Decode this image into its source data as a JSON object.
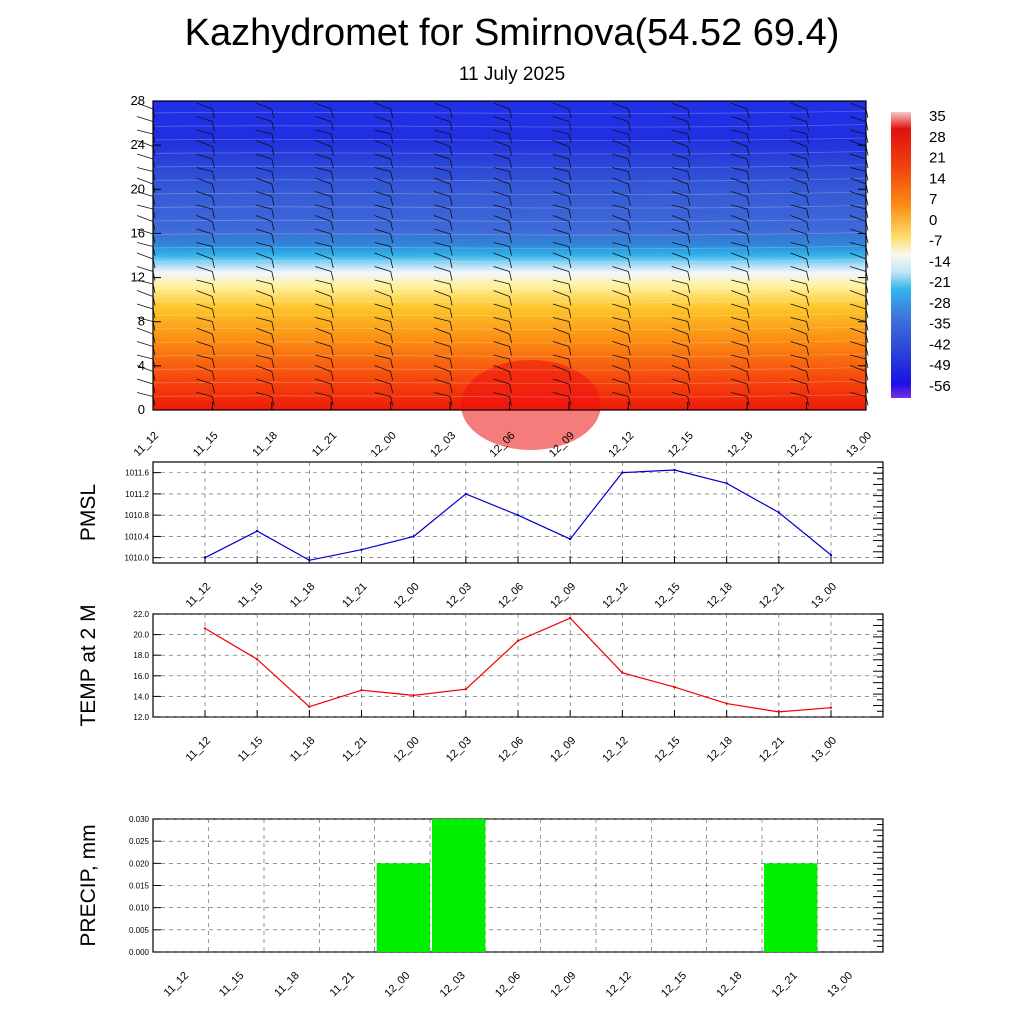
{
  "title": "Kazhydromet for Smirnova(54.52 69.4)",
  "subtitle": "11 July 2025",
  "time_labels": [
    "11_12",
    "11_15",
    "11_18",
    "11_21",
    "12_00",
    "12_03",
    "12_06",
    "12_09",
    "12_12",
    "12_15",
    "12_18",
    "12_21",
    "13_00"
  ],
  "chart_data": [
    {
      "type": "heatmap",
      "name": "temperature-cross-section",
      "x": [
        "11_12",
        "11_15",
        "11_18",
        "11_21",
        "12_00",
        "12_03",
        "12_06",
        "12_09",
        "12_12",
        "12_15",
        "12_18",
        "12_21",
        "13_00"
      ],
      "yticks": [
        0,
        4,
        8,
        12,
        16,
        20,
        24,
        28
      ],
      "ylim": [
        0,
        28
      ],
      "colorbar": {
        "labels": [
          35,
          28,
          21,
          14,
          7,
          0,
          -7,
          -14,
          -21,
          -28,
          -35,
          -42,
          -49,
          -56
        ],
        "range": [
          -60,
          38
        ]
      },
      "wind_barbs": true,
      "grid": false
    },
    {
      "type": "line",
      "name": "pmsl",
      "ylabel": "PMSL",
      "x": [
        "11_12",
        "11_15",
        "11_18",
        "11_21",
        "12_00",
        "12_03",
        "12_06",
        "12_09",
        "12_12",
        "12_15",
        "12_18",
        "12_21",
        "13_00"
      ],
      "values": [
        1010.0,
        1010.5,
        1009.95,
        1010.15,
        1010.4,
        1011.2,
        1010.8,
        1010.35,
        1011.6,
        1011.65,
        1011.4,
        1010.85,
        1010.05
      ],
      "yticks": [
        "1010.0",
        "1010.4",
        "1010.8",
        "1011.2",
        "1011.6"
      ],
      "ylim": [
        1009.9,
        1011.8
      ],
      "color": "#0000cc",
      "grid": true
    },
    {
      "type": "line",
      "name": "temp-2m",
      "ylabel": "TEMP at 2 M",
      "x": [
        "11_12",
        "11_15",
        "11_18",
        "11_21",
        "12_00",
        "12_03",
        "12_06",
        "12_09",
        "12_12",
        "12_15",
        "12_18",
        "12_21",
        "13_00"
      ],
      "values": [
        20.6,
        17.6,
        13.0,
        14.6,
        14.1,
        14.7,
        19.4,
        21.6,
        16.3,
        14.9,
        13.3,
        12.5,
        12.9
      ],
      "yticks": [
        "12.0",
        "14.0",
        "16.0",
        "18.0",
        "20.0",
        "22.0"
      ],
      "ylim": [
        12.0,
        22.0
      ],
      "color": "#ee0000",
      "grid": true
    },
    {
      "type": "bar",
      "name": "precip",
      "ylabel": "PRECIP, mm",
      "categories": [
        "11_12",
        "11_15",
        "11_18",
        "11_21",
        "12_00",
        "12_03",
        "12_06",
        "12_09",
        "12_12",
        "12_15",
        "12_18",
        "12_21",
        "13_00"
      ],
      "values": [
        0,
        0,
        0,
        0,
        0.02,
        0.03,
        0,
        0,
        0,
        0,
        0,
        0.02,
        0
      ],
      "yticks": [
        "0.000",
        "0.005",
        "0.010",
        "0.015",
        "0.020",
        "0.025",
        "0.030"
      ],
      "ylim": [
        0,
        0.03
      ],
      "color": "#00ee00",
      "grid": true
    }
  ]
}
